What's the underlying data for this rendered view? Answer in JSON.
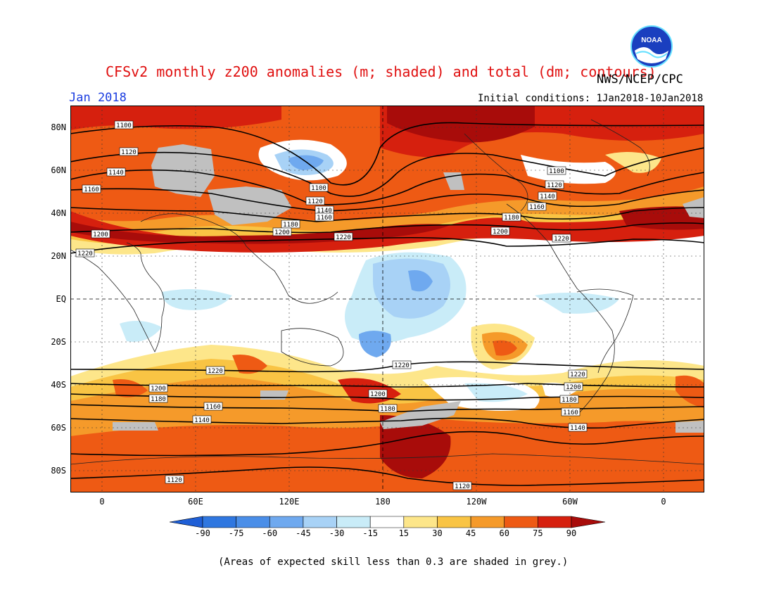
{
  "header": {
    "title": "CFSv2 monthly z200 anomalies (m; shaded) and total (dm; contours)",
    "agency": "NWS/NCEP/CPC",
    "month": "Jan 2018",
    "initial_conditions": "Initial conditions: 1Jan2018-10Jan2018",
    "logo_text": "NOAA"
  },
  "map": {
    "lat_labels": [
      "80N",
      "60N",
      "40N",
      "20N",
      "EQ",
      "20S",
      "40S",
      "60S",
      "80S"
    ],
    "lon_labels": [
      "0",
      "60E",
      "120E",
      "180",
      "120W",
      "60W",
      "0"
    ],
    "contour_labels": [
      "1100",
      "1120",
      "1140",
      "1160",
      "1180",
      "1200",
      "1220"
    ],
    "colors": {
      "ocean_neutral": "#ffffff",
      "skill_grey": "#c0c0c0"
    }
  },
  "colorbar": {
    "labels": [
      "-90",
      "-75",
      "-60",
      "-45",
      "-30",
      "-15",
      "15",
      "30",
      "45",
      "60",
      "75",
      "90"
    ],
    "colors": [
      "#1f5fd6",
      "#2f77e0",
      "#4a8ee8",
      "#6fa9ef",
      "#a8d2f6",
      "#c9ecf8",
      "#ffffff",
      "#fde68a",
      "#f9c444",
      "#f59a2a",
      "#ee5a14",
      "#d6200e",
      "#a80c0a"
    ]
  },
  "footnote": "(Areas of expected skill less than 0.3 are shaded in grey.)"
}
